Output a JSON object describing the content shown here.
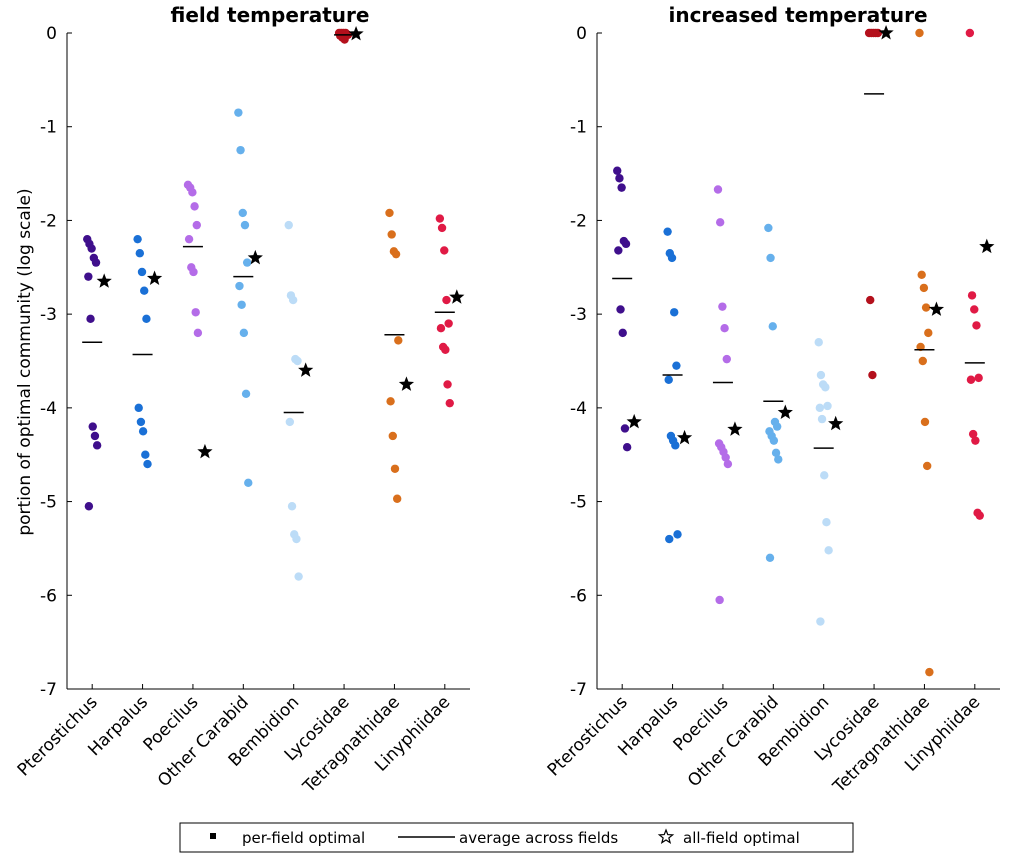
{
  "chart_data": {
    "type": "scatter",
    "ylabel": "portion of optimal community (log scale)",
    "ylim": [
      -7,
      0
    ],
    "yticks": [
      "0",
      "-1",
      "-2",
      "-3",
      "-4",
      "-5",
      "-6",
      "-7"
    ],
    "categories": [
      "Pterostichus",
      "Harpalus",
      "Poecilus",
      "Other Carabid",
      "Bembidion",
      "Lycosidae",
      "Tetragnathidae",
      "Linyphiidae"
    ],
    "colors": [
      "#3f0f8c",
      "#1a70d6",
      "#b46ce8",
      "#66b0ec",
      "#bcdcf7",
      "#b4101c",
      "#d96f1c",
      "#e01a45"
    ],
    "legend": {
      "per_field": "per-field optimal",
      "average": "average across fields",
      "all_field": "all-field optimal"
    },
    "panels": [
      {
        "title": "field temperature",
        "series": [
          {
            "name": "Pterostichus",
            "per_field": [
              -2.2,
              -2.25,
              -2.3,
              -2.4,
              -2.45,
              -2.6,
              -3.05,
              -4.2,
              -4.3,
              -4.4,
              -5.05
            ],
            "average": -3.3,
            "all_field": -2.65
          },
          {
            "name": "Harpalus",
            "per_field": [
              -2.2,
              -2.35,
              -2.55,
              -2.75,
              -3.05,
              -4.0,
              -4.15,
              -4.25,
              -4.5,
              -4.6
            ],
            "average": -3.43,
            "all_field": -2.62
          },
          {
            "name": "Poecilus",
            "per_field": [
              -1.62,
              -1.65,
              -1.7,
              -1.85,
              -2.05,
              -2.2,
              -2.5,
              -2.55,
              -2.98,
              -3.2
            ],
            "average": -2.28,
            "all_field": -4.47
          },
          {
            "name": "Other Carabid",
            "per_field": [
              -0.85,
              -1.25,
              -1.92,
              -2.05,
              -2.45,
              -2.7,
              -2.9,
              -3.2,
              -3.85,
              -4.8
            ],
            "average": -2.6,
            "all_field": -2.4
          },
          {
            "name": "Bembidion",
            "per_field": [
              -2.05,
              -2.8,
              -2.85,
              -3.48,
              -3.5,
              -4.15,
              -5.05,
              -5.35,
              -5.4,
              -5.8
            ],
            "average": -4.05,
            "all_field": -3.6
          },
          {
            "name": "Lycosidae",
            "per_field": [
              0,
              0,
              0,
              0,
              -0.02,
              -0.03,
              -0.05,
              -0.07
            ],
            "average": -0.02,
            "all_field": -0.01
          },
          {
            "name": "Tetragnathidae",
            "per_field": [
              -1.92,
              -2.15,
              -2.33,
              -2.36,
              -3.28,
              -3.93,
              -4.3,
              -4.65,
              -4.97
            ],
            "average": -3.22,
            "all_field": -3.75
          },
          {
            "name": "Linyphiidae",
            "per_field": [
              -1.98,
              -2.08,
              -2.32,
              -2.85,
              -3.1,
              -3.15,
              -3.35,
              -3.38,
              -3.75,
              -3.95
            ],
            "average": -2.98,
            "all_field": -2.82
          }
        ]
      },
      {
        "title": "increased temperature",
        "series": [
          {
            "name": "Pterostichus",
            "per_field": [
              -1.47,
              -1.55,
              -1.65,
              -2.22,
              -2.25,
              -2.32,
              -2.95,
              -3.2,
              -4.22,
              -4.42
            ],
            "average": -2.62,
            "all_field": -4.15
          },
          {
            "name": "Harpalus",
            "per_field": [
              -2.12,
              -2.35,
              -2.4,
              -2.98,
              -3.55,
              -3.7,
              -4.3,
              -4.35,
              -4.4,
              -5.35,
              -5.4
            ],
            "average": -3.65,
            "all_field": -4.32
          },
          {
            "name": "Poecilus",
            "per_field": [
              -1.67,
              -2.02,
              -2.92,
              -3.15,
              -3.48,
              -4.38,
              -4.42,
              -4.47,
              -4.53,
              -4.6,
              -6.05
            ],
            "average": -3.73,
            "all_field": -4.23
          },
          {
            "name": "Other Carabid",
            "per_field": [
              -2.08,
              -2.4,
              -3.13,
              -4.15,
              -4.2,
              -4.25,
              -4.3,
              -4.35,
              -4.48,
              -4.55,
              -5.6
            ],
            "average": -3.93,
            "all_field": -4.05
          },
          {
            "name": "Bembidion",
            "per_field": [
              -3.3,
              -3.65,
              -3.75,
              -3.78,
              -3.98,
              -4.0,
              -4.12,
              -4.72,
              -5.22,
              -5.52,
              -6.28
            ],
            "average": -4.43,
            "all_field": -4.17
          },
          {
            "name": "Lycosidae",
            "per_field": [
              0,
              0,
              0,
              0,
              0,
              -2.85,
              -3.65
            ],
            "average": -0.65,
            "all_field": 0
          },
          {
            "name": "Tetragnathidae",
            "per_field": [
              0,
              -2.58,
              -2.72,
              -2.93,
              -3.2,
              -3.35,
              -3.5,
              -4.15,
              -4.62,
              -6.82
            ],
            "average": -3.38,
            "all_field": -2.95
          },
          {
            "name": "Linyphiidae",
            "per_field": [
              0,
              -2.8,
              -2.95,
              -3.12,
              -3.68,
              -3.7,
              -4.28,
              -4.35,
              -5.12,
              -5.15
            ],
            "average": -3.52,
            "all_field": -2.28
          }
        ]
      }
    ]
  }
}
